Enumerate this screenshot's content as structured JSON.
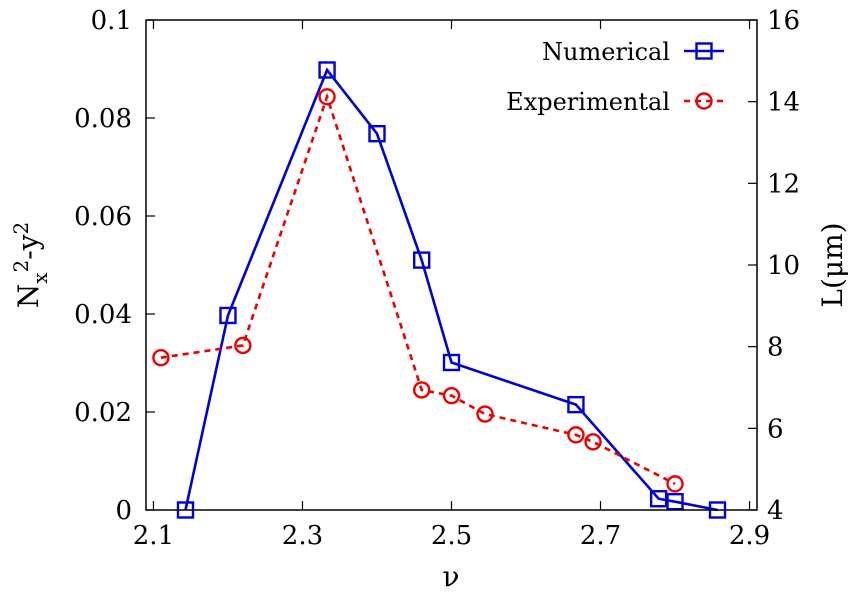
{
  "chart_data": {
    "type": "line",
    "x_axis": {
      "label": "ν",
      "range": [
        2.09,
        2.91
      ],
      "ticks": [
        2.1,
        2.3,
        2.5,
        2.7,
        2.9
      ],
      "tick_labels": [
        "2.1",
        "2.3",
        "2.5",
        "2.7",
        "2.9"
      ]
    },
    "y_axis_left": {
      "label_main": "N",
      "label_sub": "x",
      "label_sup1": "2",
      "label_mid": "-y",
      "label_sup2": "2",
      "range": [
        0,
        0.1
      ],
      "ticks": [
        0,
        0.02,
        0.04,
        0.06,
        0.08,
        0.1
      ],
      "tick_labels": [
        "0",
        "0.02",
        "0.04",
        "0.06",
        "0.08",
        "0.1"
      ]
    },
    "y_axis_right": {
      "label": "L(μm)",
      "range": [
        4,
        16
      ],
      "ticks": [
        4,
        6,
        8,
        10,
        12,
        14,
        16
      ],
      "tick_labels": [
        "4",
        "6",
        "8",
        "10",
        "12",
        "14",
        "16"
      ]
    },
    "grid": false,
    "legend_position": "top-right",
    "series": [
      {
        "name": "Numerical",
        "axis": "left",
        "color": "#0000dd",
        "line_style": "solid",
        "marker": "square",
        "x": [
          2.143,
          2.2,
          2.333,
          2.4,
          2.46,
          2.5,
          2.667,
          2.778,
          2.8,
          2.857
        ],
        "y": [
          0.0,
          0.0397,
          0.0898,
          0.0768,
          0.051,
          0.0301,
          0.0215,
          0.0023,
          0.0017,
          0.0
        ]
      },
      {
        "name": "Experimental",
        "axis": "right",
        "color": "#ee0000",
        "line_style": "dashed",
        "marker": "circle",
        "x": [
          2.11,
          2.22,
          2.333,
          2.46,
          2.5,
          2.545,
          2.667,
          2.69,
          2.8
        ],
        "y": [
          7.73,
          8.03,
          14.12,
          6.94,
          6.8,
          6.35,
          5.84,
          5.67,
          4.64
        ]
      }
    ]
  }
}
